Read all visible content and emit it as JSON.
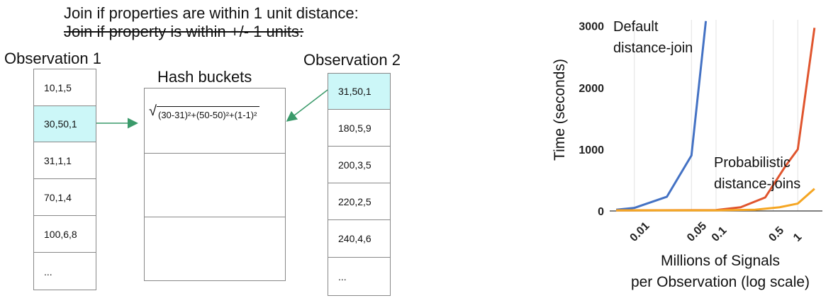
{
  "header": {
    "line1": "Join if properties are within 1 unit distance:",
    "line2_struck": "Join if property is within +/- 1 units:"
  },
  "observation1": {
    "label": "Observation 1",
    "rows": [
      "10,1,5",
      "30,50,1",
      "31,1,1",
      "70,1,4",
      "100,6,8",
      "..."
    ],
    "highlight_index": 1
  },
  "hash": {
    "label": "Hash buckets",
    "formula": "(30-31)²+(50-50)²+(1-1)²"
  },
  "observation2": {
    "label": "Observation 2",
    "rows": [
      "31,50,1",
      "180,5,9",
      "200,3,5",
      "220,2,5",
      "240,4,6",
      "..."
    ],
    "highlight_index": 0
  },
  "colors": {
    "highlight": "#ccf7f8",
    "arrow": "#3a9a6a",
    "default_series": "#4472c4",
    "probabilistic_red": "#e0552e",
    "probabilistic_orange": "#f5a623"
  },
  "chart_data": {
    "type": "line",
    "xlabel": "Millions of Signals per Observation (log scale)",
    "xlabel_lines": [
      "Millions of Signals",
      "per Observation (log scale)"
    ],
    "ylabel": "Time (seconds)",
    "x_scale": "log",
    "xlim": [
      0.005,
      2
    ],
    "ylim": [
      0,
      3100
    ],
    "x_ticks": [
      0.01,
      0.05,
      0.1,
      0.5,
      1
    ],
    "x_tick_labels": [
      "0.01",
      "0.05",
      "0.1",
      "0.5",
      "1"
    ],
    "y_ticks": [
      0,
      1000,
      2000,
      3000
    ],
    "y_tick_labels": [
      "0",
      "1000",
      "2000",
      "3000"
    ],
    "grid": "vertical",
    "annotations": [
      {
        "lines": [
          "Default",
          "distance-join"
        ]
      },
      {
        "lines": [
          "Probabilistic",
          "distance-joins"
        ]
      }
    ],
    "series": [
      {
        "color": "#4472c4",
        "x": [
          0.006,
          0.01,
          0.025,
          0.05,
          0.075
        ],
        "y": [
          20,
          50,
          230,
          900,
          3080
        ]
      },
      {
        "color": "#e0552e",
        "x": [
          0.006,
          0.1,
          0.2,
          0.4,
          0.7,
          1.0,
          1.6
        ],
        "y": [
          10,
          15,
          60,
          220,
          720,
          1000,
          2970
        ]
      },
      {
        "color": "#f5a623",
        "x": [
          0.006,
          0.1,
          0.3,
          0.6,
          1.0,
          1.6
        ],
        "y": [
          10,
          10,
          20,
          60,
          120,
          360
        ]
      }
    ]
  }
}
